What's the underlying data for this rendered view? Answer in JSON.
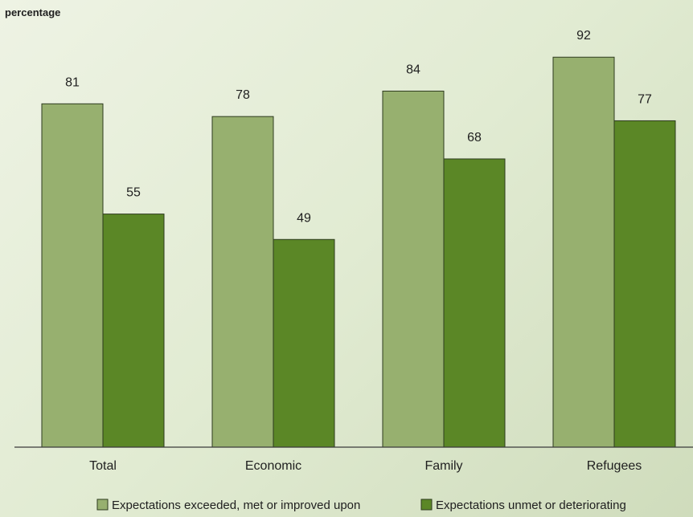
{
  "chart_data": {
    "type": "bar",
    "ylabel": "percentage",
    "xlabel": "",
    "title": "",
    "categories": [
      "Total",
      "Economic",
      "Family",
      "Refugees"
    ],
    "series": [
      {
        "name": "Expectations exceeded, met or improved upon",
        "values": [
          81,
          78,
          84,
          92
        ],
        "color": "#97b06f"
      },
      {
        "name": "Expectations unmet or deteriorating",
        "values": [
          55,
          49,
          68,
          77
        ],
        "color": "#5b8726"
      }
    ],
    "ylim": [
      0,
      100
    ],
    "grid": false,
    "legend_position": "bottom"
  }
}
